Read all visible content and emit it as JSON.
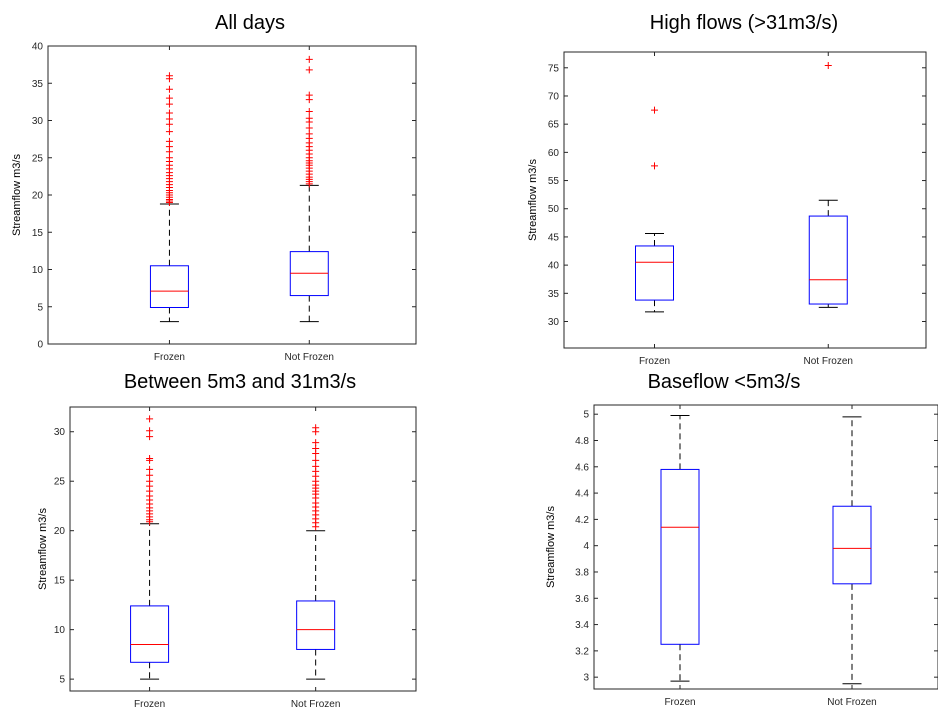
{
  "chart_data": [
    {
      "type": "boxplot",
      "title": "All days",
      "ylabel": "Streamflow m3/s",
      "categories": [
        "Frozen",
        "Not Frozen"
      ],
      "ylim": [
        0,
        40
      ],
      "yticks": [
        0,
        5,
        10,
        15,
        20,
        25,
        30,
        35,
        40
      ],
      "yticklabels": [
        "0",
        "5",
        "10",
        "15",
        "20",
        "25",
        "30",
        "35",
        "40"
      ],
      "boxes": [
        {
          "min": 3.0,
          "q1": 4.9,
          "median": 7.1,
          "q3": 10.5,
          "max": 18.8,
          "outliers": [
            19.0,
            19.2,
            19.4,
            19.7,
            20.0,
            20.3,
            20.6,
            21.0,
            21.4,
            21.8,
            22.2,
            22.6,
            23.0,
            23.5,
            24.0,
            24.5,
            25.0,
            25.8,
            26.5,
            27.2,
            28.5,
            29.5,
            30.2,
            31.0,
            32.2,
            33.0,
            34.2,
            35.6,
            36.0
          ]
        },
        {
          "min": 3.0,
          "q1": 6.5,
          "median": 9.5,
          "q3": 12.4,
          "max": 21.3,
          "outliers": [
            21.5,
            21.8,
            22.1,
            22.4,
            22.8,
            23.2,
            23.6,
            24.0,
            24.3,
            24.6,
            25.0,
            25.5,
            26.0,
            26.5,
            27.0,
            27.6,
            28.2,
            29.0,
            29.8,
            30.3,
            31.2,
            32.8,
            33.4,
            36.8,
            38.2
          ]
        }
      ],
      "colors": {
        "box": "#0000ff",
        "median": "#ff0000",
        "outlier": "#ff0000",
        "whisker": "#000000"
      }
    },
    {
      "type": "boxplot",
      "title": "High flows (>31m3/s)",
      "ylabel": "Streamflow m3/s",
      "categories": [
        "Frozen",
        "Not Frozen"
      ],
      "ylim": [
        25.3,
        77.8
      ],
      "yticks": [
        30,
        35,
        40,
        45,
        50,
        55,
        60,
        65,
        70,
        75
      ],
      "yticklabels": [
        "30",
        "35",
        "40",
        "45",
        "50",
        "55",
        "60",
        "65",
        "70",
        "75"
      ],
      "boxes": [
        {
          "min": 31.7,
          "q1": 33.8,
          "median": 40.5,
          "q3": 43.4,
          "max": 45.6,
          "outliers": [
            57.6,
            67.5
          ]
        },
        {
          "min": 32.5,
          "q1": 33.1,
          "median": 37.4,
          "q3": 48.7,
          "max": 51.5,
          "outliers": [
            75.4
          ]
        }
      ],
      "colors": {
        "box": "#0000ff",
        "median": "#ff0000",
        "outlier": "#ff0000",
        "whisker": "#000000"
      }
    },
    {
      "type": "boxplot",
      "title": "Between 5m3 and 31m3/s",
      "ylabel": "Streamflow m3/s",
      "categories": [
        "Frozen",
        "Not Frozen"
      ],
      "ylim": [
        3.8,
        32.5
      ],
      "yticks": [
        5,
        10,
        15,
        20,
        25,
        30
      ],
      "yticklabels": [
        "5",
        "10",
        "15",
        "20",
        "25",
        "30"
      ],
      "boxes": [
        {
          "min": 5.0,
          "q1": 6.7,
          "median": 8.5,
          "q3": 12.4,
          "max": 20.7,
          "outliers": [
            20.9,
            21.1,
            21.4,
            21.7,
            22.0,
            22.3,
            22.7,
            23.1,
            23.5,
            24.0,
            24.5,
            25.0,
            25.6,
            26.2,
            27.1,
            27.3,
            29.5,
            30.1,
            31.3
          ]
        },
        {
          "min": 5.0,
          "q1": 8.0,
          "median": 10.0,
          "q3": 12.9,
          "max": 20.0,
          "outliers": [
            20.4,
            20.8,
            21.2,
            21.6,
            22.0,
            22.4,
            22.8,
            23.3,
            23.7,
            24.0,
            24.3,
            24.6,
            25.0,
            25.5,
            26.0,
            26.5,
            27.1,
            27.8,
            28.3,
            28.9,
            30.0,
            30.4
          ]
        }
      ],
      "colors": {
        "box": "#0000ff",
        "median": "#ff0000",
        "outlier": "#ff0000",
        "whisker": "#000000"
      }
    },
    {
      "type": "boxplot",
      "title": "Baseflow <5m3/s",
      "ylabel": "Streamflow m3/s",
      "categories": [
        "Frozen",
        "Not Frozen"
      ],
      "ylim": [
        2.91,
        5.07
      ],
      "yticks": [
        3,
        3.2,
        3.4,
        3.6,
        3.8,
        4,
        4.2,
        4.4,
        4.6,
        4.8,
        5
      ],
      "yticklabels": [
        "3",
        "3.2",
        "3.4",
        "3.6",
        "3.8",
        "4",
        "4.2",
        "4.4",
        "4.6",
        "4.8",
        "5"
      ],
      "boxes": [
        {
          "min": 2.97,
          "q1": 3.25,
          "median": 4.14,
          "q3": 4.58,
          "max": 4.99,
          "outliers": []
        },
        {
          "min": 2.95,
          "q1": 3.71,
          "median": 3.98,
          "q3": 4.3,
          "max": 4.98,
          "outliers": []
        }
      ],
      "colors": {
        "box": "#0000ff",
        "median": "#ff0000",
        "outlier": "#ff0000",
        "whisker": "#000000"
      }
    }
  ]
}
